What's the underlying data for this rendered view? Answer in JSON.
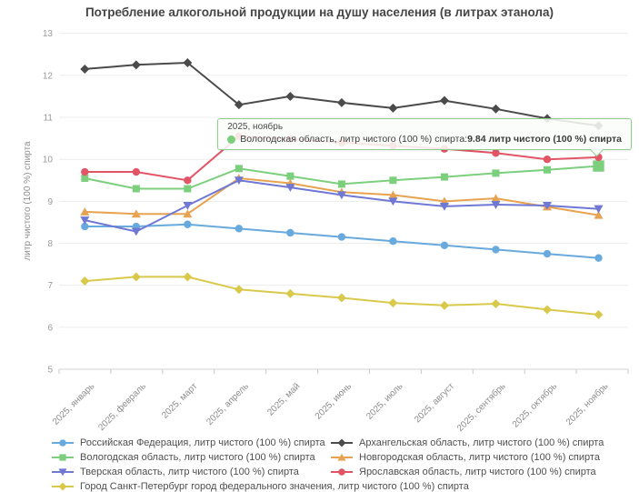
{
  "title": "Потребление алкогольной продукции на душу населения (в литрах этанола)",
  "tooltip": {
    "header": "2025, ноябрь",
    "series_label": "Вологодская область, литр чистого (100 %) спирта",
    "separator": ": ",
    "value_text": "9.84 литр чистого (100 %) спирта",
    "marker_color": "#7ccf7c",
    "border_color": "#8ecf8e",
    "background": "#f9fdf9"
  },
  "chart_data": {
    "type": "line",
    "x": [
      "2025, январь",
      "2025, февраль",
      "2025, март",
      "2025, апрель",
      "2025, май",
      "2025, июнь",
      "2025, июль",
      "2025, август",
      "2025, сентябрь",
      "2025, октябрь",
      "2025, ноябрь"
    ],
    "ylabel": "литр чистого (100 %) спирта",
    "ylim": [
      5,
      13
    ],
    "yticks": [
      5,
      6,
      7,
      8,
      9,
      10,
      11,
      12,
      13
    ],
    "grid": true,
    "legend_position": "bottom",
    "tooltip_point": {
      "series": "Вологодская область, литр чистого (100 %) спирта",
      "x": "2025, ноябрь",
      "value": 9.84
    },
    "series": [
      {
        "name": "Российская Федерация, литр чистого (100 %) спирта",
        "color": "#68a9de",
        "marker": "circle",
        "values": [
          8.4,
          8.4,
          8.45,
          8.35,
          8.25,
          8.15,
          8.05,
          7.95,
          7.85,
          7.75,
          7.65
        ]
      },
      {
        "name": "Архангельская область, литр чистого (100 %) спирта",
        "color": "#4b4b4b",
        "marker": "diamond",
        "values": [
          12.15,
          12.25,
          12.3,
          11.3,
          11.5,
          11.35,
          11.22,
          11.4,
          11.2,
          10.97,
          10.8
        ]
      },
      {
        "name": "Вологодская область, литр чистого (100 %) спирта",
        "color": "#7ccf7c",
        "marker": "square",
        "values": [
          9.55,
          9.3,
          9.3,
          9.78,
          9.6,
          9.41,
          9.5,
          9.58,
          9.67,
          9.75,
          9.84
        ],
        "highlight_index": 10
      },
      {
        "name": "Новгородская область, литр чистого (100 %) спирта",
        "color": "#e8a351",
        "marker": "triangle-up",
        "values": [
          8.75,
          8.7,
          8.7,
          9.55,
          9.43,
          9.22,
          9.15,
          9.0,
          9.07,
          8.87,
          8.67
        ]
      },
      {
        "name": "Тверская область, литр чистого (100 %) спирта",
        "color": "#6f78d4",
        "marker": "triangle-down",
        "values": [
          8.55,
          8.28,
          8.9,
          9.5,
          9.33,
          9.15,
          9.0,
          8.88,
          8.92,
          8.9,
          8.82
        ]
      },
      {
        "name": "Ярославская область, литр чистого (100 %) спирта",
        "color": "#e25566",
        "marker": "circle",
        "values": [
          9.7,
          9.7,
          9.5,
          10.55,
          10.48,
          10.4,
          10.32,
          10.25,
          10.15,
          10.0,
          10.05
        ]
      },
      {
        "name": "Город Санкт-Петербург город федерального значения, литр чистого (100 %) спирта",
        "color": "#d9c94b",
        "marker": "diamond",
        "values": [
          7.1,
          7.2,
          7.2,
          6.9,
          6.8,
          6.7,
          6.58,
          6.52,
          6.56,
          6.42,
          6.3
        ]
      }
    ]
  }
}
